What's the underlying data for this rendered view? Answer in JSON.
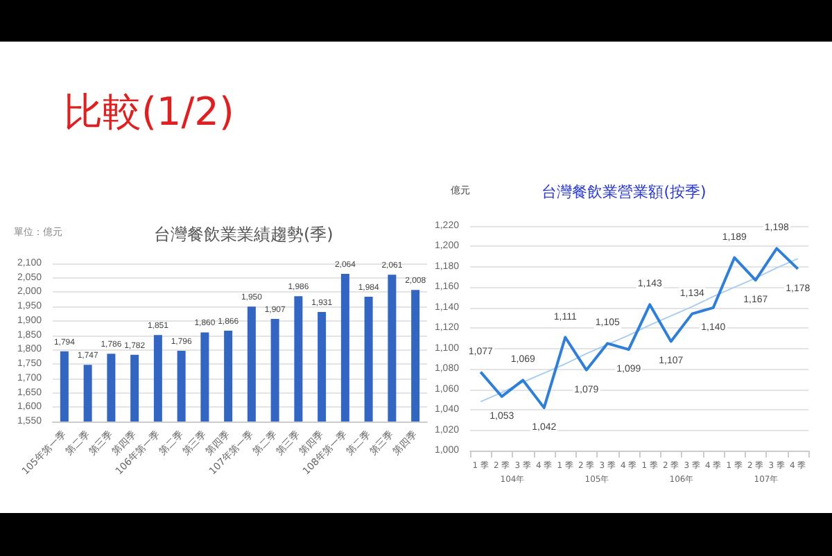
{
  "chart_data": [
    {
      "type": "bar",
      "title": "台灣餐飲業業績趨勢(季)",
      "annotations": [
        "比較(1/2)",
        "單位：億元"
      ],
      "categories": [
        "105年第一季",
        "第二季",
        "第三季",
        "第四季",
        "106年第一季",
        "第二季",
        "第三季",
        "第四季",
        "107年第一季",
        "第二季",
        "第三季",
        "第四季",
        "108年第一季",
        "第二季",
        "第三季",
        "第四季"
      ],
      "values": [
        1794,
        1747,
        1786,
        1782,
        1851,
        1796,
        1860,
        1866,
        1950,
        1907,
        1986,
        1931,
        2064,
        1984,
        2061,
        2008
      ],
      "value_labels": [
        "1,794",
        "1,747",
        "1,786",
        "1,782",
        "1,851",
        "1,796",
        "1,860",
        "1,866",
        "1,950",
        "1,907",
        "1,986",
        "1,931",
        "2,064",
        "1,984",
        "2,061",
        "2,008"
      ],
      "color": "#3366c2",
      "ylim": [
        1550,
        2100
      ],
      "yticks": [
        {
          "value": 1550,
          "label": "1,550"
        },
        {
          "value": 1600,
          "label": "1,600"
        },
        {
          "value": 1650,
          "label": "1,650"
        },
        {
          "value": 1700,
          "label": "1,700"
        },
        {
          "value": 1750,
          "label": "1,750"
        },
        {
          "value": 1800,
          "label": "1,800"
        },
        {
          "value": 1850,
          "label": "1,850"
        },
        {
          "value": 1900,
          "label": "1,900"
        },
        {
          "value": 1950,
          "label": "1,950"
        },
        {
          "value": 2000,
          "label": "2,000"
        },
        {
          "value": 2050,
          "label": "2,050"
        },
        {
          "value": 2100,
          "label": "2,100"
        }
      ],
      "grid": "y"
    },
    {
      "type": "line",
      "title": "台灣餐飲業營業額(按季)",
      "ylabel": "億元",
      "annotations": [
        "104年",
        "105年",
        "106年",
        "107年"
      ],
      "categories": [
        "1 季",
        "2 季",
        "3 季",
        "4 季",
        "1 季",
        "2 季",
        "3 季",
        "4 季",
        "1 季",
        "2 季",
        "3 季",
        "4 季",
        "1 季",
        "2 季",
        "3 季",
        "4 季"
      ],
      "series": [
        {
          "color": "#2f7ed8",
          "values": [
            1077,
            1053,
            1069,
            1042,
            1111,
            1079,
            1105,
            1099,
            1143,
            1107,
            1134,
            1140,
            1189,
            1167,
            1198,
            1178
          ],
          "value_labels": [
            "1,077",
            "1,053",
            "1,069",
            "1,042",
            "1,111",
            "1,079",
            "1,105",
            "1,099",
            "1,143",
            "1,107",
            "1,134",
            "1,140",
            "1,189",
            "1,167",
            "1,198",
            "1,178"
          ]
        },
        {
          "color": "#a9cdf0",
          "values": [
            1048,
            1057,
            1067,
            1076,
            1085,
            1095,
            1104,
            1113,
            1123,
            1132,
            1141,
            1151,
            1160,
            1169,
            1179,
            1188
          ]
        }
      ],
      "ylim": [
        1000,
        1220
      ],
      "yticks": [
        {
          "value": 1000,
          "label": "1,000"
        },
        {
          "value": 1020,
          "label": "1,020"
        },
        {
          "value": 1040,
          "label": "1,040"
        },
        {
          "value": 1060,
          "label": "1,060"
        },
        {
          "value": 1080,
          "label": "1,080"
        },
        {
          "value": 1100,
          "label": "1,100"
        },
        {
          "value": 1120,
          "label": "1,120"
        },
        {
          "value": 1140,
          "label": "1,140"
        },
        {
          "value": 1160,
          "label": "1,160"
        },
        {
          "value": 1180,
          "label": "1,180"
        },
        {
          "value": 1200,
          "label": "1,200"
        },
        {
          "value": 1220,
          "label": "1,220"
        }
      ],
      "grid": "y",
      "marker": "none"
    }
  ]
}
